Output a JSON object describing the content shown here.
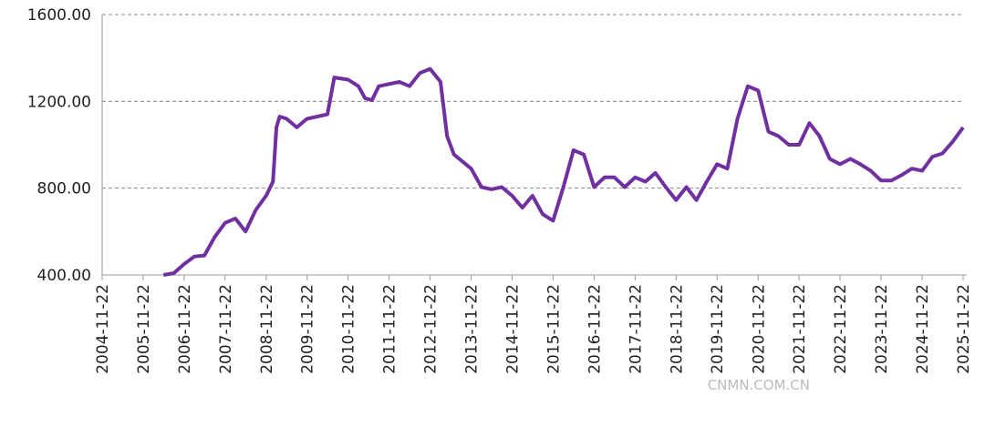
{
  "chart_data": {
    "type": "line",
    "watermark": "CNMN.COM.CN",
    "x": [
      "2006-05-22",
      "2006-08-22",
      "2006-11-22",
      "2007-02-22",
      "2007-05-22",
      "2007-08-22",
      "2007-11-22",
      "2008-02-22",
      "2008-05-22",
      "2008-08-22",
      "2008-11-22",
      "2009-01-22",
      "2009-02-22",
      "2009-03-22",
      "2009-05-22",
      "2009-08-22",
      "2009-11-22",
      "2010-02-22",
      "2010-05-22",
      "2010-07-22",
      "2010-11-22",
      "2011-02-22",
      "2011-04-22",
      "2011-06-22",
      "2011-08-22",
      "2011-11-22",
      "2012-02-22",
      "2012-05-22",
      "2012-08-22",
      "2012-11-22",
      "2013-02-22",
      "2013-04-22",
      "2013-06-22",
      "2013-11-22",
      "2014-02-22",
      "2014-05-22",
      "2014-08-22",
      "2014-11-22",
      "2015-02-22",
      "2015-05-22",
      "2015-08-22",
      "2015-11-22",
      "2016-02-22",
      "2016-05-22",
      "2016-08-22",
      "2016-11-22",
      "2017-02-22",
      "2017-05-22",
      "2017-08-22",
      "2017-11-22",
      "2018-02-22",
      "2018-05-22",
      "2018-08-22",
      "2018-11-22",
      "2019-02-22",
      "2019-05-22",
      "2019-08-22",
      "2019-11-22",
      "2020-02-22",
      "2020-05-22",
      "2020-08-22",
      "2020-11-22",
      "2021-02-22",
      "2021-05-22",
      "2021-08-22",
      "2021-11-22",
      "2022-02-22",
      "2022-05-22",
      "2022-08-22",
      "2022-11-22",
      "2023-02-22",
      "2023-05-22",
      "2023-08-22",
      "2023-11-22",
      "2024-02-22",
      "2024-05-22",
      "2024-08-22",
      "2024-11-22",
      "2025-02-22",
      "2025-05-22",
      "2025-08-22",
      "2025-11-22"
    ],
    "series": [
      {
        "color": "#7030a0",
        "values": [
          400,
          408,
          450,
          485,
          490,
          575,
          640,
          660,
          600,
          700,
          765,
          830,
          1080,
          1130,
          1120,
          1080,
          1120,
          1130,
          1140,
          1310,
          1300,
          1270,
          1215,
          1205,
          1270,
          1280,
          1290,
          1270,
          1330,
          1350,
          1290,
          1040,
          955,
          890,
          805,
          795,
          805,
          765,
          710,
          765,
          680,
          650,
          805,
          975,
          955,
          805,
          850,
          850,
          805,
          850,
          830,
          870,
          805,
          745,
          805,
          745,
          830,
          910,
          890,
          1120,
          1270,
          1250,
          1060,
          1040,
          1000,
          1000,
          1100,
          1040,
          935,
          910,
          935,
          910,
          880,
          835,
          835,
          860,
          890,
          880,
          945,
          960,
          1015,
          1080
        ]
      }
    ],
    "xticks": [
      "2004-11-22",
      "2005-11-22",
      "2006-11-22",
      "2007-11-22",
      "2008-11-22",
      "2009-11-22",
      "2010-11-22",
      "2011-11-22",
      "2012-11-22",
      "2013-11-22",
      "2014-11-22",
      "2015-11-22",
      "2016-11-22",
      "2017-11-22",
      "2018-11-22",
      "2019-11-22",
      "2020-11-22",
      "2021-11-22",
      "2022-11-22",
      "2023-11-22",
      "2024-11-22",
      "2025-11-22"
    ],
    "xlim": [
      "2004-11-22",
      "2025-11-22"
    ],
    "ylim": [
      400,
      1600
    ],
    "yticks": [
      {
        "value": 400,
        "label": "400.00"
      },
      {
        "value": 800,
        "label": "800.00"
      },
      {
        "value": 1200,
        "label": "1200.00"
      },
      {
        "value": 1600,
        "label": "1600.00"
      }
    ],
    "grid": true
  }
}
